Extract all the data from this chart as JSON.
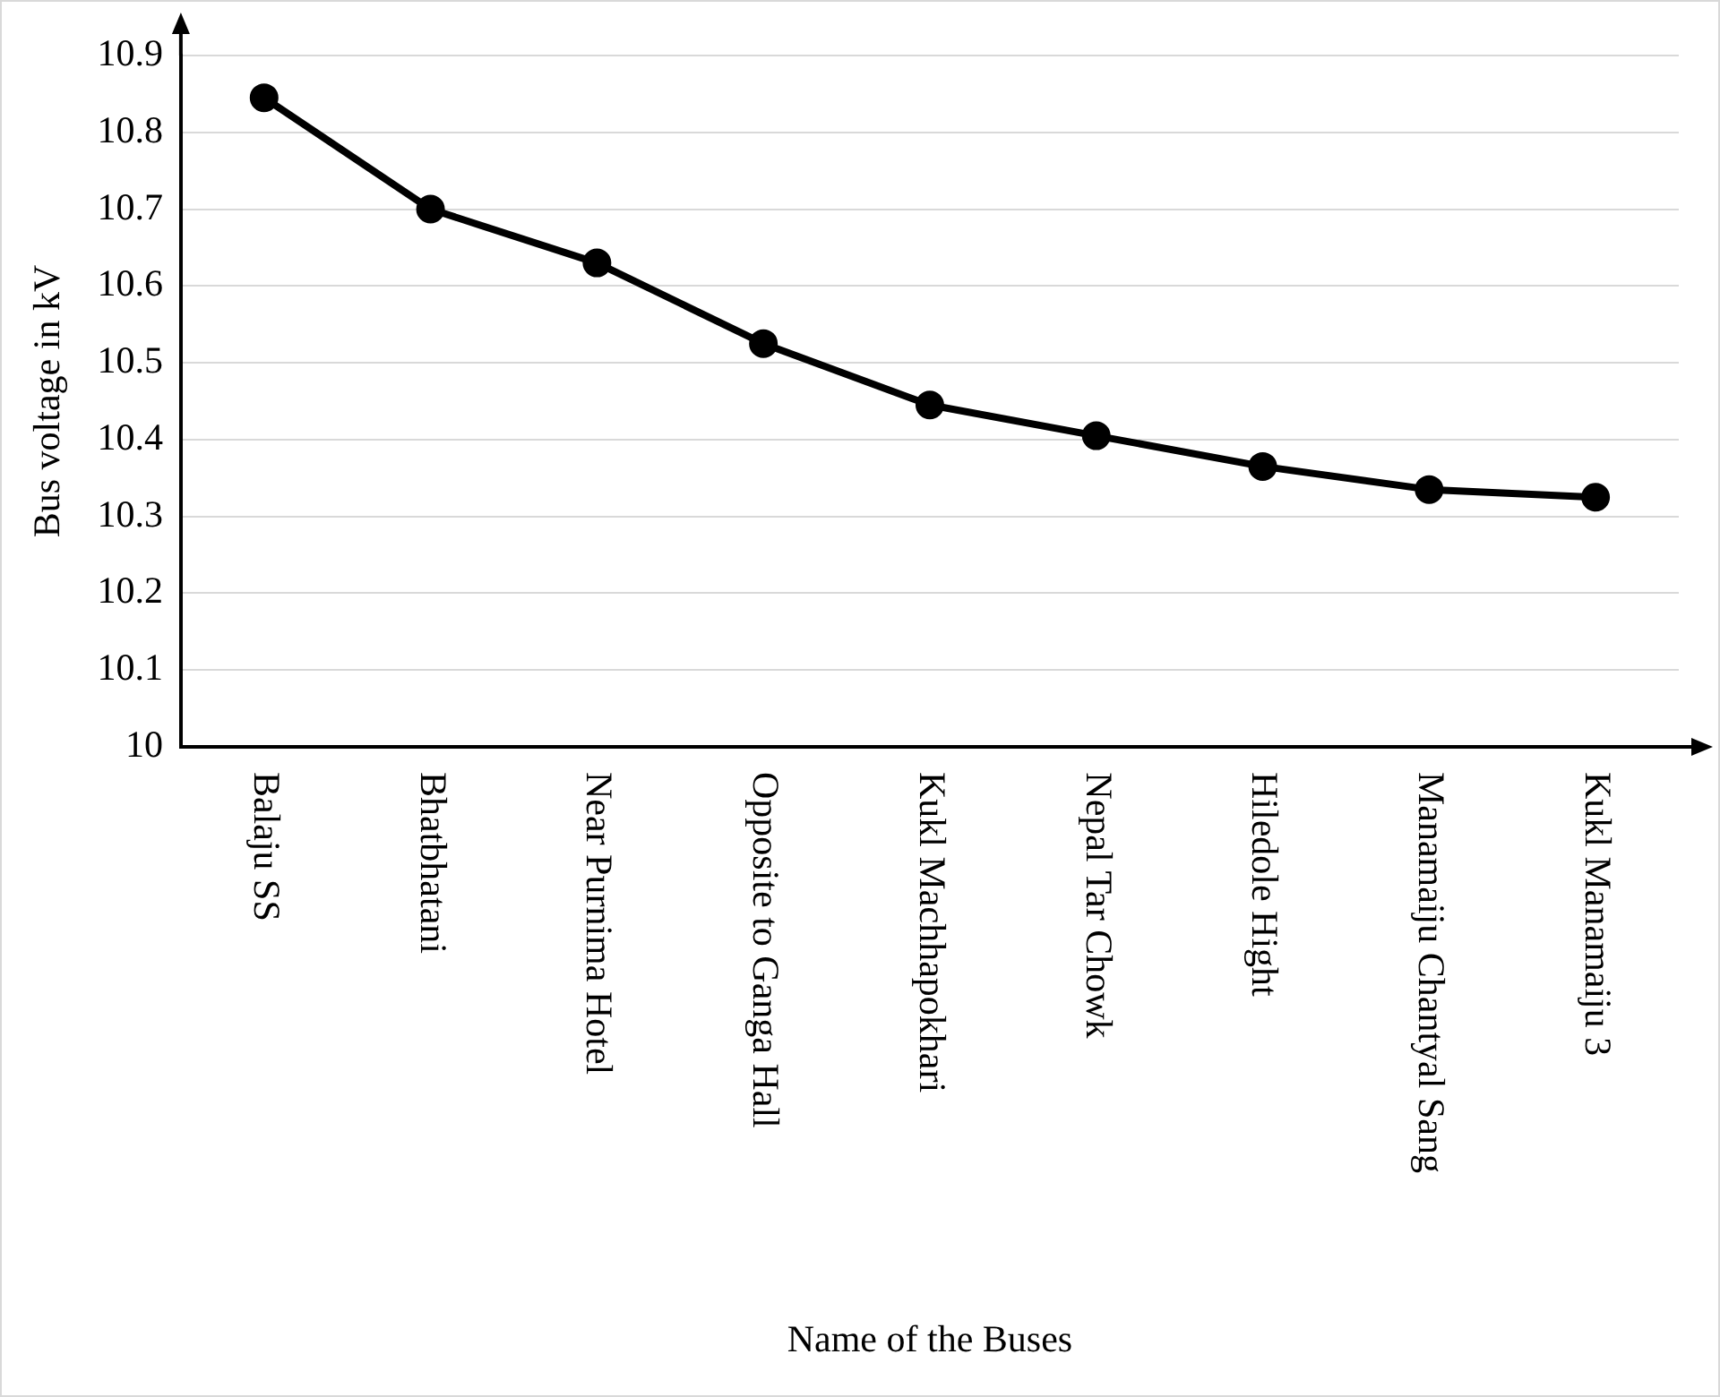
{
  "chart_data": {
    "type": "line",
    "xlabel": "Name of the Buses",
    "ylabel": "Bus voltage in kV",
    "categories": [
      "Balaju SS",
      "Bhatbhatani",
      "Near Purnima Hotel",
      "Opposite to Ganga Hall",
      "Kukl Machhapokhari",
      "Nepal Tar Chowk",
      "Hiledole Hight",
      "Manamaiju Chantyal Sang",
      "Kukl Manamaiju 3"
    ],
    "series": [
      {
        "color": "#000000",
        "values": [
          10.845,
          10.7,
          10.63,
          10.525,
          10.445,
          10.405,
          10.365,
          10.335,
          10.325
        ]
      }
    ],
    "ylim": [
      10,
      10.9
    ],
    "yticks": [
      10,
      10.1,
      10.2,
      10.3,
      10.4,
      10.5,
      10.6,
      10.7,
      10.8,
      10.9
    ],
    "grid": "y",
    "legend": false,
    "marker": "circle",
    "line_style": "solid"
  }
}
